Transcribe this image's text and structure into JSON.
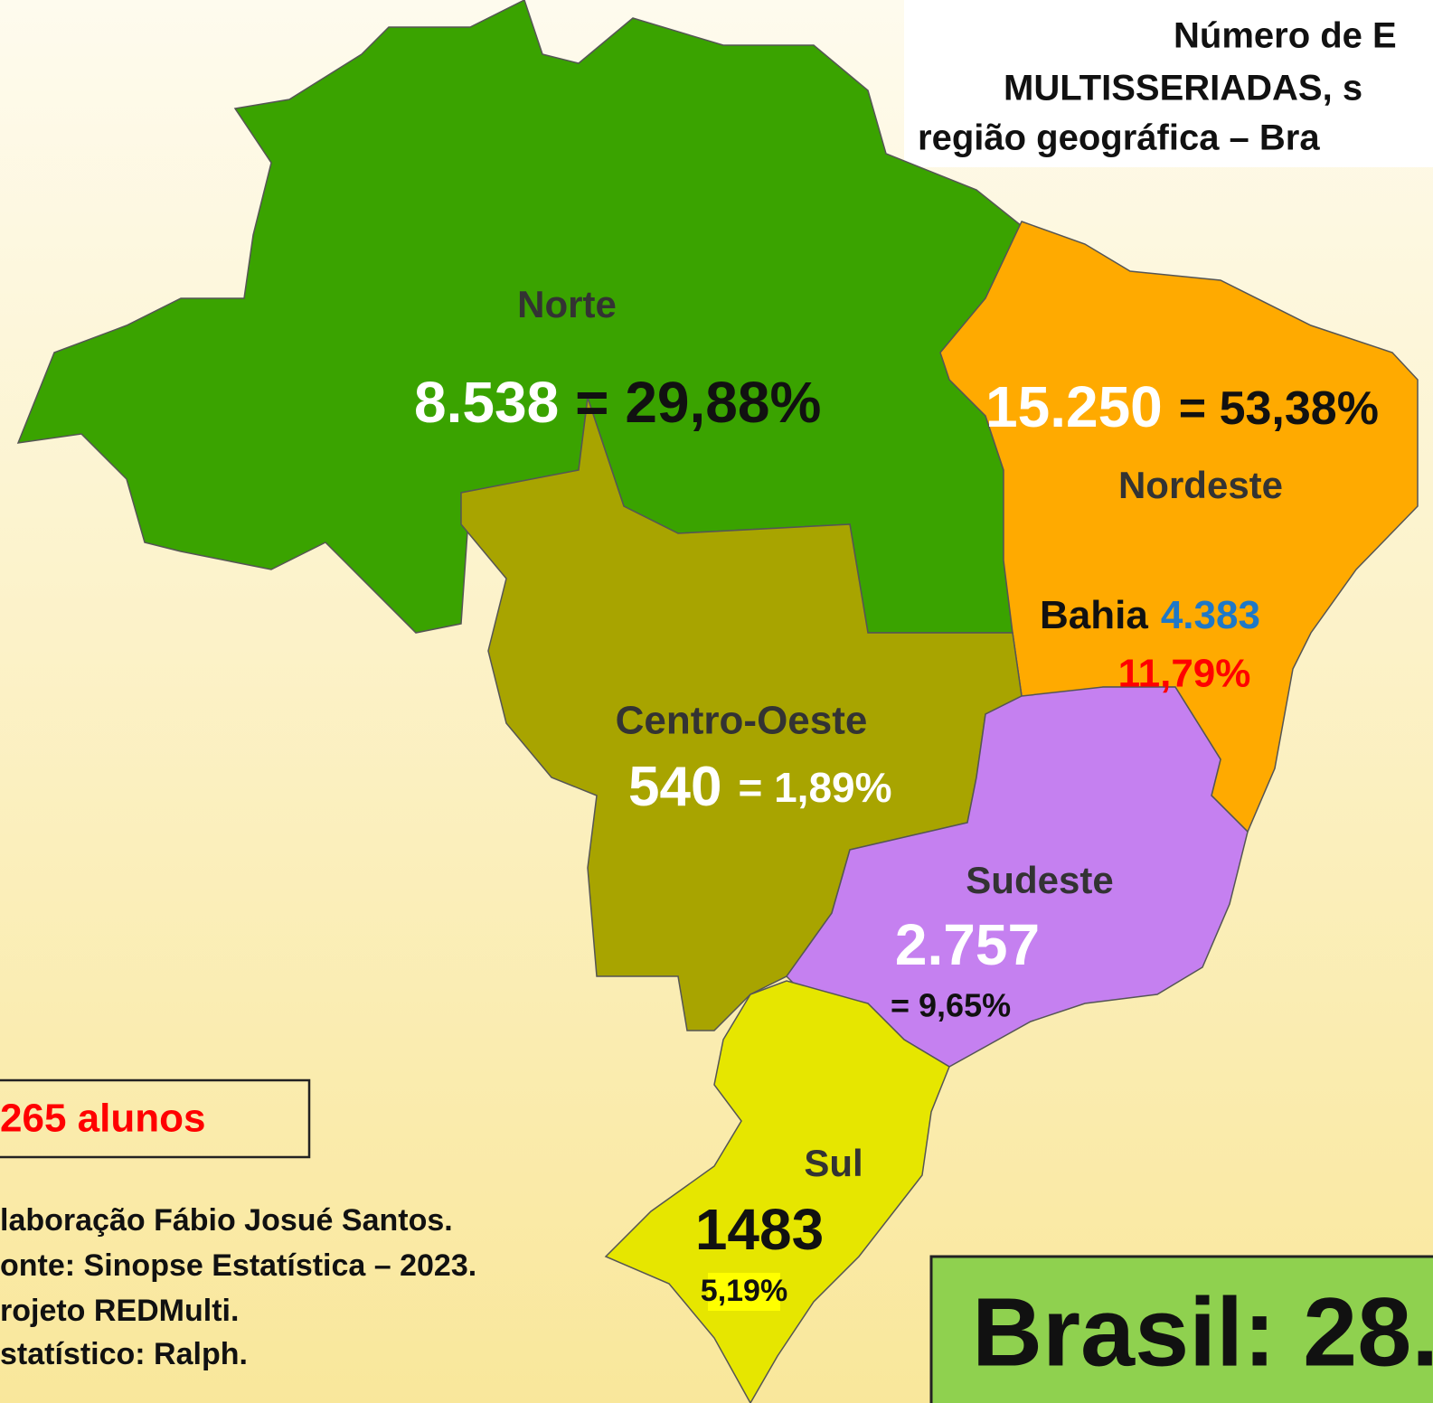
{
  "title": {
    "lines": [
      "Número de E",
      "MULTISSERIADAS, s",
      "região geográfica – Bra"
    ]
  },
  "regions": [
    {
      "name": "Norte",
      "count": "8.538",
      "percent": "= 29,88%"
    },
    {
      "name": "Nordeste",
      "count": "15.250",
      "percent": "= 53,38%"
    },
    {
      "name": "Centro-Oeste",
      "count": "540",
      "percent": "= 1,89%"
    },
    {
      "name": "Sudeste",
      "count": "2.757",
      "percent": "= 9,65%"
    },
    {
      "name": "Sul",
      "count": "1483",
      "percent": "5,19%"
    }
  ],
  "bahia": {
    "name": "Bahia",
    "count": "4.383",
    "percent": "11,79%"
  },
  "legend_box": "265 alunos",
  "credits": [
    "laboração Fábio Josué Santos.",
    "onte: Sinopse Estatística – 2023.",
    "rojeto REDMulti.",
    "statístico: Ralph."
  ],
  "total": "Brasil: 28."
}
